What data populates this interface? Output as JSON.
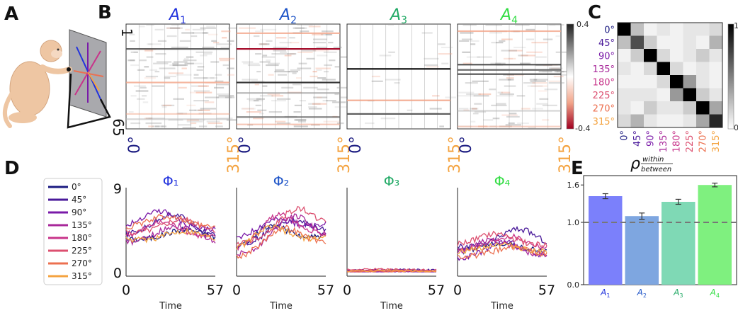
{
  "panel_letters": {
    "a": "A",
    "b": "B",
    "c": "C",
    "d": "D",
    "e": "E"
  },
  "panel_b": {
    "subplots": [
      {
        "label": "A",
        "sub": "1",
        "color": "#2233dd"
      },
      {
        "label": "A",
        "sub": "2",
        "color": "#1f55c8"
      },
      {
        "label": "A",
        "sub": "3",
        "color": "#22aa66"
      },
      {
        "label": "A",
        "sub": "4",
        "color": "#33dd44"
      }
    ],
    "row_top_label": "1",
    "row_bottom_label": "65",
    "x_left_label": "0°",
    "x_right_label": "315°",
    "x_left_color": "#1a1a80",
    "x_right_color": "#f4a340",
    "colorbar_top": "0.4",
    "colorbar_bottom": "-0.4"
  },
  "panel_c": {
    "labels": [
      "0°",
      "45°",
      "90°",
      "135°",
      "180°",
      "225°",
      "270°",
      "315°"
    ],
    "label_colors": [
      "#1a1a80",
      "#4a1a9a",
      "#7a1aa8",
      "#a8289a",
      "#c8348a",
      "#dc5070",
      "#ec7050",
      "#f4a340"
    ],
    "colorbar_top": "1",
    "colorbar_bottom": "0",
    "matrix": [
      [
        1.0,
        0.25,
        0.05,
        0.1,
        0.05,
        0.1,
        0.1,
        0.15
      ],
      [
        0.25,
        0.7,
        0.2,
        0.05,
        0.05,
        0.1,
        0.05,
        0.3
      ],
      [
        0.05,
        0.2,
        1.0,
        0.15,
        0.05,
        0.1,
        0.2,
        0.1
      ],
      [
        0.1,
        0.05,
        0.15,
        1.0,
        0.15,
        0.05,
        0.1,
        0.05
      ],
      [
        0.05,
        0.05,
        0.05,
        0.15,
        1.0,
        0.4,
        0.1,
        0.05
      ],
      [
        0.1,
        0.1,
        0.1,
        0.05,
        0.4,
        1.0,
        0.2,
        0.1
      ],
      [
        0.1,
        0.05,
        0.2,
        0.1,
        0.1,
        0.2,
        1.0,
        0.35
      ],
      [
        0.15,
        0.3,
        0.1,
        0.05,
        0.05,
        0.1,
        0.35,
        0.85
      ]
    ]
  },
  "panel_d": {
    "legend": [
      {
        "label": "0°",
        "color": "#1a1a80"
      },
      {
        "label": "45°",
        "color": "#4a1a9a"
      },
      {
        "label": "90°",
        "color": "#7a1aa8"
      },
      {
        "label": "135°",
        "color": "#a8289a"
      },
      {
        "label": "180°",
        "color": "#c8348a"
      },
      {
        "label": "225°",
        "color": "#dc5070"
      },
      {
        "label": "270°",
        "color": "#ec7050"
      },
      {
        "label": "315°",
        "color": "#f4a340"
      }
    ],
    "titles": [
      {
        "text": "Φ₁",
        "color": "#2233dd"
      },
      {
        "text": "Φ₂",
        "color": "#1f55c8"
      },
      {
        "text": "Φ₃",
        "color": "#22aa66"
      },
      {
        "text": "Φ₄",
        "color": "#33dd44"
      }
    ],
    "y_top": "9",
    "y_bottom": "0",
    "x_left": "0",
    "x_right": "57",
    "xlabel": "Time"
  },
  "panel_e": {
    "title": "ρ",
    "title_sub_top": "within",
    "title_sub_bottom": "between",
    "yticks": [
      "1.6",
      "1.0",
      "0.0"
    ],
    "chart_data": {
      "type": "bar",
      "categories": [
        "A1",
        "A2",
        "A3",
        "A4"
      ],
      "category_labels": [
        {
          "main": "A",
          "sub": "1"
        },
        {
          "main": "A",
          "sub": "2"
        },
        {
          "main": "A",
          "sub": "3"
        },
        {
          "main": "A",
          "sub": "4"
        }
      ],
      "values": [
        1.42,
        1.1,
        1.33,
        1.6
      ],
      "errors": [
        0.04,
        0.05,
        0.04,
        0.03
      ],
      "colors": [
        "#7b80fb",
        "#7ea6e0",
        "#7fd9b5",
        "#7ff07f"
      ],
      "label_colors": [
        "#2233dd",
        "#1f55c8",
        "#22aa66",
        "#33dd44"
      ],
      "ylim": [
        0,
        1.75
      ],
      "reference_line": 1.0
    }
  }
}
